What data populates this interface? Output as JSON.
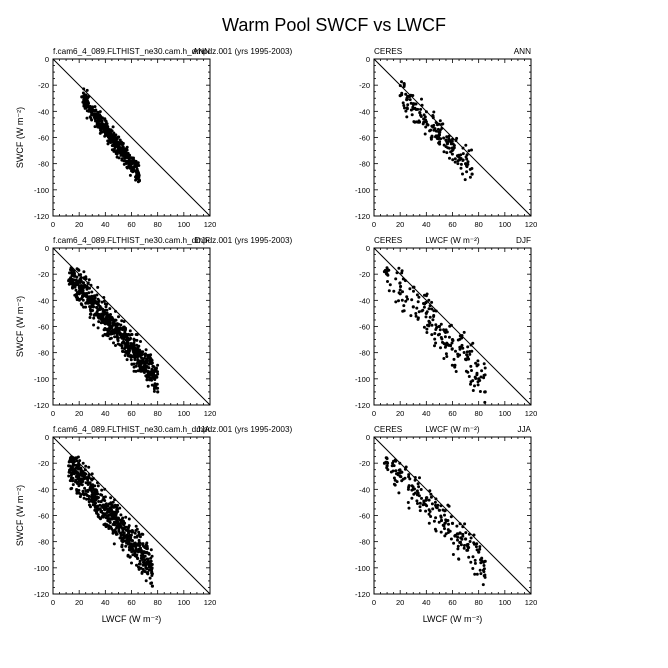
{
  "figure_title": "Warm Pool SWCF vs LWCF",
  "colors": {
    "points": "#000000",
    "axes": "#000000",
    "background": "#ffffff"
  },
  "chart_data": [
    {
      "type": "scatter",
      "title": "",
      "left_label": "f.cam6_4_089.FLTHIST_ne30.cam.h_dmpdz.001 (yrs 1995-2003)",
      "right_label": "ANN",
      "xlabel": "",
      "ylabel": "SWCF (W m⁻²)",
      "xlim": [
        0,
        120
      ],
      "ylim": [
        -120,
        0
      ],
      "xticks": [
        "0",
        "20",
        "40",
        "60",
        "80",
        "100",
        "120"
      ],
      "yticks": [
        "0",
        "-20",
        "-40",
        "-60",
        "-80",
        "-100",
        "-120"
      ],
      "reference_line": "one-to-one (SWCF = -LWCF)",
      "cloud": {
        "seed": 11,
        "n": 420,
        "x_range": [
          22,
          66
        ],
        "slope": -1.34,
        "intercept": 0,
        "spread": 5.5,
        "lo_x": 32,
        "hi_x": 62
      },
      "x": [
        22,
        25,
        30,
        34,
        38,
        42,
        46,
        50,
        55,
        60,
        64,
        66
      ],
      "y": [
        -29,
        -33,
        -40,
        -45,
        -51,
        -56,
        -61,
        -67,
        -72,
        -79,
        -87,
        -93
      ]
    },
    {
      "type": "scatter",
      "title": "",
      "left_label": "CERES",
      "right_label": "ANN",
      "xlabel": "",
      "ylabel": "",
      "xlim": [
        0,
        120
      ],
      "ylim": [
        -120,
        0
      ],
      "xticks": [
        "0",
        "20",
        "40",
        "60",
        "80",
        "100",
        "120"
      ],
      "yticks": [
        "0",
        "-20",
        "-40",
        "-60",
        "-80",
        "-100",
        "-120"
      ],
      "reference_line": "one-to-one (SWCF = -LWCF)",
      "cloud": {
        "seed": 23,
        "n": 160,
        "x_range": [
          20,
          75
        ],
        "slope": -1.05,
        "intercept": -5,
        "spread": 9,
        "lo_x": 30,
        "hi_x": 65
      },
      "x": [
        20,
        25,
        30,
        35,
        40,
        45,
        50,
        55,
        60,
        65,
        70,
        75
      ],
      "y": [
        -28,
        -31,
        -38,
        -41,
        -48,
        -52,
        -58,
        -62,
        -68,
        -75,
        -80,
        -88
      ]
    },
    {
      "type": "scatter",
      "title": "",
      "left_label": "f.cam6_4_089.FLTHIST_ne30.cam.h_dmpdz.001 (yrs 1995-2003)",
      "right_label": "DJF",
      "xlabel": "",
      "ylabel": "SWCF (W m⁻²)",
      "xlim": [
        0,
        120
      ],
      "ylim": [
        -120,
        0
      ],
      "xticks": [
        "0",
        "20",
        "40",
        "60",
        "80",
        "100",
        "120"
      ],
      "yticks": [
        "0",
        "-20",
        "-40",
        "-60",
        "-80",
        "-100",
        "-120"
      ],
      "reference_line": "one-to-one (SWCF = -LWCF)",
      "cloud": {
        "seed": 37,
        "n": 700,
        "x_range": [
          12,
          80
        ],
        "slope": -1.2,
        "intercept": -5,
        "spread": 9,
        "lo_x": 15,
        "hi_x": 75
      },
      "x": [
        12,
        15,
        20,
        30,
        40,
        50,
        60,
        70,
        75,
        80
      ],
      "y": [
        -25,
        -30,
        -35,
        -42,
        -55,
        -63,
        -75,
        -90,
        -100,
        -110
      ]
    },
    {
      "type": "scatter",
      "title": "",
      "left_label": "CERES",
      "right_label": "DJF",
      "center_label": "LWCF (W m⁻²)",
      "xlabel": "",
      "ylabel": "",
      "xlim": [
        0,
        120
      ],
      "ylim": [
        -120,
        0
      ],
      "xticks": [
        "0",
        "20",
        "40",
        "60",
        "80",
        "100",
        "120"
      ],
      "yticks": [
        "0",
        "-20",
        "-40",
        "-60",
        "-80",
        "-100",
        "-120"
      ],
      "reference_line": "one-to-one (SWCF = -LWCF)",
      "cloud": {
        "seed": 51,
        "n": 190,
        "x_range": [
          8,
          85
        ],
        "slope": -1.1,
        "intercept": -8,
        "spread": 12,
        "lo_x": 10,
        "hi_x": 80
      },
      "x": [
        8,
        10,
        20,
        30,
        40,
        50,
        60,
        70,
        80,
        85
      ],
      "y": [
        -18,
        -20,
        -35,
        -45,
        -50,
        -60,
        -70,
        -85,
        -100,
        -110
      ]
    },
    {
      "type": "scatter",
      "title": "",
      "left_label": "f.cam6_4_089.FLTHIST_ne30.cam.h_dmpdz.001 (yrs 1995-2003)",
      "right_label": "JJA",
      "xlabel": "LWCF (W m⁻²)",
      "ylabel": "SWCF (W m⁻²)",
      "xlim": [
        0,
        120
      ],
      "ylim": [
        -120,
        0
      ],
      "xticks": [
        "0",
        "20",
        "40",
        "60",
        "80",
        "100",
        "120"
      ],
      "yticks": [
        "0",
        "-20",
        "-40",
        "-60",
        "-80",
        "-100",
        "-120"
      ],
      "reference_line": "one-to-one (SWCF = -LWCF)",
      "cloud": {
        "seed": 67,
        "n": 620,
        "x_range": [
          12,
          76
        ],
        "slope": -1.25,
        "intercept": -5,
        "spread": 10,
        "lo_x": 15,
        "hi_x": 72
      },
      "x": [
        12,
        15,
        20,
        30,
        40,
        50,
        60,
        70,
        75,
        76
      ],
      "y": [
        -22,
        -27,
        -32,
        -42,
        -52,
        -62,
        -72,
        -88,
        -100,
        -114
      ]
    },
    {
      "type": "scatter",
      "title": "",
      "left_label": "CERES",
      "right_label": "JJA",
      "center_label": "LWCF (W m⁻²)",
      "xlabel": "LWCF (W m⁻²)",
      "ylabel": "",
      "xlim": [
        0,
        120
      ],
      "ylim": [
        -120,
        0
      ],
      "xticks": [
        "0",
        "20",
        "40",
        "60",
        "80",
        "100",
        "120"
      ],
      "yticks": [
        "0",
        "-20",
        "-40",
        "-60",
        "-80",
        "-100",
        "-120"
      ],
      "reference_line": "one-to-one (SWCF = -LWCF)",
      "cloud": {
        "seed": 83,
        "n": 200,
        "x_range": [
          8,
          85
        ],
        "slope": -1.1,
        "intercept": -6,
        "spread": 10,
        "lo_x": 12,
        "hi_x": 80
      },
      "x": [
        8,
        10,
        20,
        30,
        40,
        50,
        60,
        70,
        80,
        85
      ],
      "y": [
        -20,
        -22,
        -30,
        -40,
        -48,
        -56,
        -66,
        -78,
        -88,
        -95
      ]
    }
  ]
}
